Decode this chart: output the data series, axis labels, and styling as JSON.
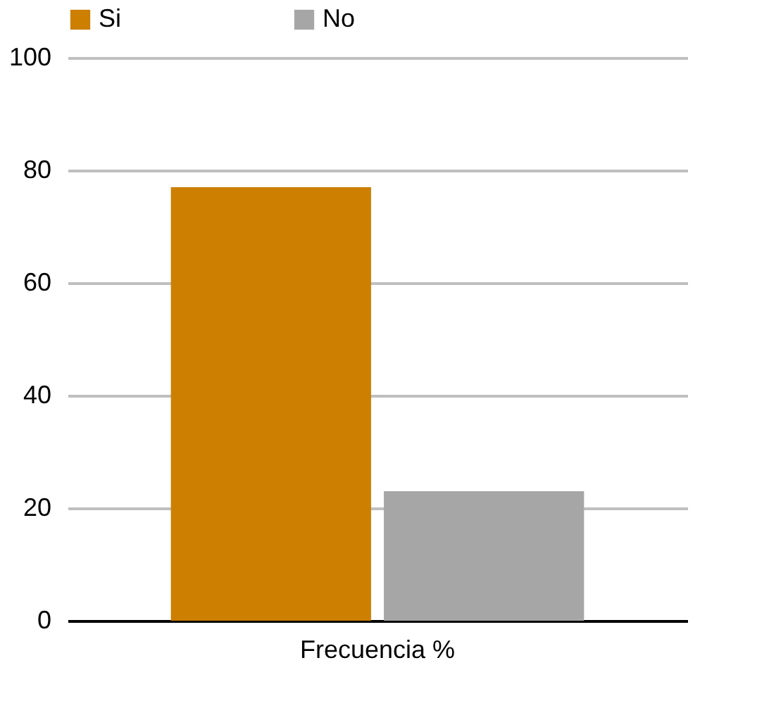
{
  "chart_data": {
    "type": "bar",
    "categories": [
      "Frecuencia %"
    ],
    "series": [
      {
        "name": "Si",
        "color": "#cc7f00",
        "values": [
          77
        ]
      },
      {
        "name": "No",
        "color": "#a6a6a6",
        "values": [
          23
        ]
      }
    ],
    "ylim": [
      0,
      100
    ],
    "yticks": [
      0,
      20,
      40,
      60,
      80,
      100
    ],
    "grid": "y",
    "legend": "top"
  }
}
